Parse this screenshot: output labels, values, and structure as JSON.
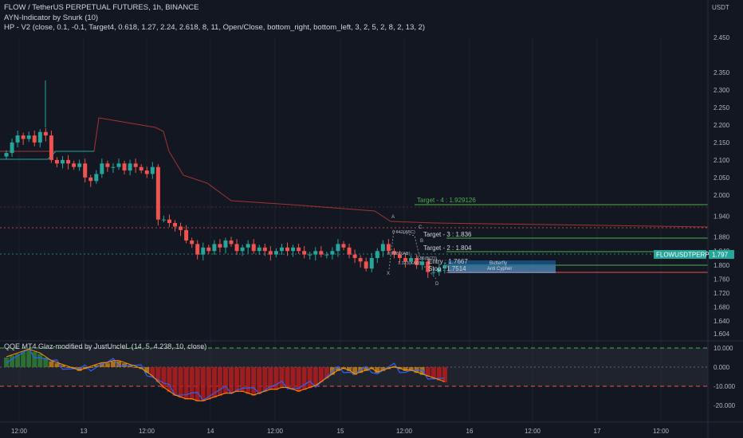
{
  "header": {
    "title": "FLOW / TetherUS PERPETUAL FUTURES, 1h, BINANCE",
    "indicator1": "AYN-Indicator by Snurk (10)",
    "indicator2": "HP - V2 (close, 0.1, -0.1, Target4, 0.618, 1.27, 2.24, 2.618, 8, 11, Open/Close, bottom_right, bottom_left, 3, 2, 5, 2, 8, 2, 13, 2)",
    "currency": "USDT"
  },
  "price_axis": {
    "ticks": [
      "2.450",
      "2.350",
      "2.300",
      "2.250",
      "2.200",
      "2.150",
      "2.100",
      "2.050",
      "2.000",
      "1.940",
      "1.880",
      "1.840",
      "1.800",
      "1.760",
      "1.720",
      "1.680",
      "1.640",
      "1.604"
    ],
    "symbol_tag": "FLOWUSDTPERP",
    "last_price": "1.797"
  },
  "time_axis": {
    "ticks": [
      "12:00",
      "13",
      "12:00",
      "14",
      "12:00",
      "15",
      "12:00",
      "16",
      "12:00",
      "17",
      "12:00"
    ]
  },
  "levels": {
    "target4": "Target - 4 : 1.929126",
    "target3": "Target - 3 : 1.836",
    "target2": "Target - 2 : 1.804",
    "entry": "Entry : 1.7667",
    "stop": "Stop : 1.7514"
  },
  "pattern": {
    "point_a": "A",
    "point_b": "B",
    "point_c": "C",
    "point_d": "D",
    "point_x": "X",
    "ratio_abc": "0.642(ABC)",
    "ratio_xab": "0.728(XAB)",
    "ratio_xad": "1.323(XAD)",
    "ratio_bcd": "2.56(BCD)",
    "label1": "Butterfly",
    "label2": "Anti Cypher"
  },
  "oscillator": {
    "title": "QQE MT4 Glaz-modified by JustUncleL (14, 5, 4.238, 10, close)",
    "ticks": [
      "10.000",
      "0.000",
      "-10.000",
      "-20.000"
    ]
  },
  "colors": {
    "up": "#26a69a",
    "down": "#ef5350",
    "background": "#131722",
    "tag": "#26a69a"
  },
  "chart_data": {
    "type": "candlestick",
    "closes": [
      2.12,
      2.15,
      2.17,
      2.16,
      2.17,
      2.15,
      2.18,
      2.17,
      2.1,
      2.09,
      2.1,
      2.09,
      2.08,
      2.09,
      2.05,
      2.04,
      2.06,
      2.09,
      2.08,
      2.08,
      2.09,
      2.07,
      2.09,
      2.08,
      2.07,
      2.06,
      2.08,
      1.93,
      1.93,
      1.92,
      1.91,
      1.9,
      1.87,
      1.86,
      1.83,
      1.85,
      1.84,
      1.86,
      1.85,
      1.87,
      1.86,
      1.84,
      1.85,
      1.86,
      1.84,
      1.85,
      1.84,
      1.83,
      1.84,
      1.85,
      1.84,
      1.85,
      1.84,
      1.83,
      1.83,
      1.84,
      1.83,
      1.83,
      1.84,
      1.86,
      1.85,
      1.83,
      1.82,
      1.81,
      1.79,
      1.82,
      1.84,
      1.86,
      1.84,
      1.83,
      1.82,
      1.81,
      1.82,
      1.8,
      1.81,
      1.78,
      1.78,
      1.79,
      1.8
    ],
    "qqe_histogram": [
      5,
      6,
      7,
      8,
      9,
      8,
      7,
      5,
      3,
      2,
      1,
      0,
      -1,
      -2,
      -1,
      0,
      1,
      2,
      2,
      3,
      3,
      2,
      1,
      0,
      -1,
      -3,
      -5,
      -8,
      -11,
      -13,
      -15,
      -16,
      -17,
      -17,
      -18,
      -18,
      -17,
      -16,
      -15,
      -14,
      -14,
      -13,
      -13,
      -14,
      -15,
      -14,
      -13,
      -12,
      -12,
      -11,
      -11,
      -12,
      -13,
      -12,
      -11,
      -10,
      -8,
      -6,
      -4,
      -2,
      -1,
      -2,
      -4,
      -3,
      -2,
      -1,
      -3,
      -2,
      -1,
      0,
      -1,
      -2,
      -2,
      -3,
      -4,
      -5,
      -6,
      -7,
      -8
    ],
    "ylim": [
      1.604,
      2.45
    ],
    "osc_ylim": [
      -20,
      10
    ]
  }
}
